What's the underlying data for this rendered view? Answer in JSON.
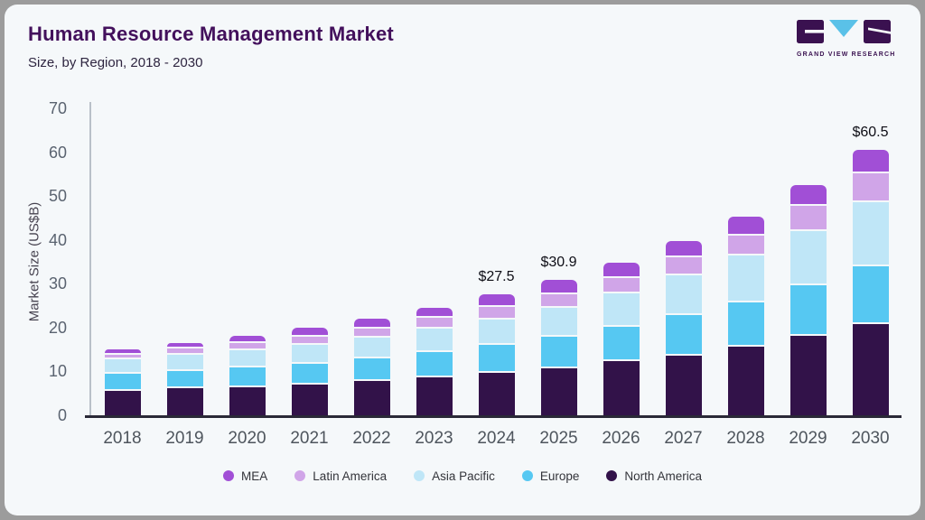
{
  "header": {
    "title": "Human Resource Management Market",
    "subtitle": "Size, by Region, 2018 - 2030"
  },
  "logo": {
    "brand": "GRAND VIEW RESEARCH",
    "mark_dark": "#3a1150",
    "mark_blue": "#5ac1e8"
  },
  "chart_data": {
    "type": "bar",
    "stacked": true,
    "title": "Human Resource Management Market",
    "subtitle": "Size, by Region, 2018 - 2030",
    "xlabel": "",
    "ylabel": "Market Size (US$B)",
    "ylim": [
      0,
      70
    ],
    "yticks": [
      0,
      10,
      20,
      30,
      40,
      50,
      60,
      70
    ],
    "grid": false,
    "legend_position": "bottom",
    "categories": [
      "2018",
      "2019",
      "2020",
      "2021",
      "2022",
      "2023",
      "2024",
      "2025",
      "2026",
      "2027",
      "2028",
      "2029",
      "2030"
    ],
    "series": [
      {
        "name": "North America",
        "color": "#321249",
        "values": [
          6.0,
          6.5,
          6.9,
          7.4,
          8.2,
          9.0,
          10.1,
          11.2,
          12.7,
          14.0,
          16.1,
          18.5,
          21.3
        ]
      },
      {
        "name": "Europe",
        "color": "#56c8f2",
        "values": [
          3.8,
          4.1,
          4.5,
          4.8,
          5.2,
          5.8,
          6.3,
          7.2,
          7.8,
          9.3,
          10.0,
          11.6,
          13.0
        ]
      },
      {
        "name": "Asia Pacific",
        "color": "#bfe6f7",
        "values": [
          3.3,
          3.6,
          3.9,
          4.3,
          4.7,
          5.4,
          5.9,
          6.5,
          7.8,
          9.0,
          10.8,
          12.3,
          14.8
        ]
      },
      {
        "name": "Latin America",
        "color": "#d0a5e8",
        "values": [
          1.2,
          1.4,
          1.6,
          1.8,
          2.1,
          2.4,
          2.8,
          3.2,
          3.5,
          4.2,
          4.5,
          5.8,
          6.5
        ]
      },
      {
        "name": "MEA",
        "color": "#a14fd6",
        "values": [
          0.7,
          0.9,
          1.3,
          1.7,
          1.9,
          2.0,
          2.4,
          2.8,
          2.9,
          3.3,
          4.0,
          4.3,
          4.9
        ]
      }
    ],
    "totals": [
      15.0,
      16.5,
      18.2,
      20.0,
      22.1,
      24.6,
      27.5,
      30.9,
      34.7,
      39.8,
      45.4,
      52.5,
      60.5
    ],
    "value_labels": [
      null,
      null,
      null,
      null,
      null,
      null,
      "$27.5",
      "$30.9",
      null,
      null,
      null,
      null,
      "$60.5"
    ],
    "legend_order": [
      "MEA",
      "Latin America",
      "Asia Pacific",
      "Europe",
      "North America"
    ]
  }
}
